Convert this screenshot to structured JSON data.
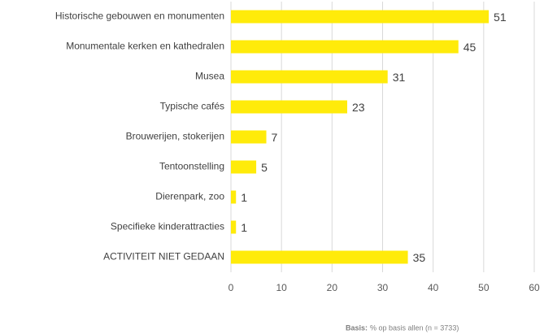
{
  "chart_data": {
    "type": "barh",
    "categories": [
      "Historische gebouwen en monumenten",
      "Monumentale kerken en kathedralen",
      "Musea",
      "Typische cafés",
      "Brouwerijen, stokerijen",
      "Tentoonstelling",
      "Dierenpark, zoo",
      "Specifieke kinderattracties",
      "ACTIVITEIT NIET GEDAAN"
    ],
    "values": [
      51,
      45,
      31,
      23,
      7,
      5,
      1,
      1,
      35
    ],
    "color": "#ffeb0a",
    "xlim": [
      0,
      60
    ],
    "xticks": [
      0,
      10,
      20,
      30,
      40,
      50,
      60
    ],
    "grid": true,
    "note_label": "Basis:",
    "note": "% op basis allen (n = 3733)"
  }
}
